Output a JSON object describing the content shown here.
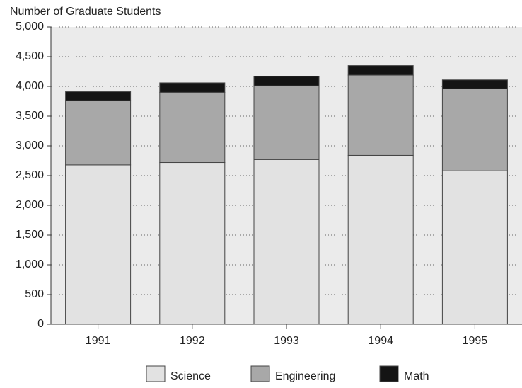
{
  "chart_data": {
    "type": "stacked_bar",
    "title": "Number of Graduate Students",
    "categories": [
      "1991",
      "1992",
      "1993",
      "1994",
      "1995"
    ],
    "series": [
      {
        "name": "Science",
        "color": "#e2e2e2",
        "values": [
          2680,
          2720,
          2770,
          2840,
          2580
        ]
      },
      {
        "name": "Engineering",
        "color": "#a8a8a8",
        "values": [
          1080,
          1180,
          1240,
          1350,
          1380
        ]
      },
      {
        "name": "Math",
        "color": "#141414",
        "values": [
          150,
          160,
          160,
          160,
          150
        ]
      }
    ],
    "ylim": [
      0,
      5000
    ],
    "yticks": [
      0,
      {
        "value": 500,
        "label": "500"
      },
      {
        "value": 1000,
        "label": "1,000"
      },
      {
        "value": 1500,
        "label": "1,500"
      },
      {
        "value": 2000,
        "label": "2,000"
      },
      {
        "value": 2500,
        "label": "2,500"
      },
      {
        "value": 3000,
        "label": "3,000"
      },
      {
        "value": 3500,
        "label": "3,500"
      },
      {
        "value": 4000,
        "label": "4,000"
      },
      {
        "value": 4500,
        "label": "4,500"
      },
      {
        "value": 5000,
        "label": "5,000"
      }
    ],
    "grid": true
  }
}
